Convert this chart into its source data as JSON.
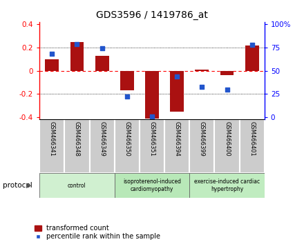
{
  "title": "GDS3596 / 1419786_at",
  "samples": [
    "GSM466341",
    "GSM466348",
    "GSM466349",
    "GSM466350",
    "GSM466351",
    "GSM466394",
    "GSM466399",
    "GSM466400",
    "GSM466401"
  ],
  "transformed_count": [
    0.1,
    0.25,
    0.13,
    -0.17,
    -0.41,
    -0.35,
    0.01,
    -0.04,
    0.22
  ],
  "percentile_rank_pct": [
    68,
    79,
    74,
    22,
    1,
    44,
    33,
    30,
    78
  ],
  "bar_color": "#aa1111",
  "dot_color": "#2255cc",
  "ylim_left": [
    -0.42,
    0.42
  ],
  "yticks_left": [
    -0.4,
    -0.2,
    0.0,
    0.2,
    0.4
  ],
  "yticks_right": [
    0,
    25,
    50,
    75,
    100
  ],
  "groups": [
    {
      "label": "control",
      "start": 0,
      "end": 3,
      "color": "#d0f0d0"
    },
    {
      "label": "isoproterenol-induced\ncardiomyopathy",
      "start": 3,
      "end": 6,
      "color": "#b8e8b8"
    },
    {
      "label": "exercise-induced cardiac\nhypertrophy",
      "start": 6,
      "end": 9,
      "color": "#c0ecc0"
    }
  ],
  "legend_bar_label": "transformed count",
  "legend_dot_label": "percentile rank within the sample",
  "protocol_label": "protocol",
  "background_color": "#ffffff",
  "plot_bg_color": "#ffffff",
  "sample_box_color": "#cccccc",
  "bar_width": 0.55
}
